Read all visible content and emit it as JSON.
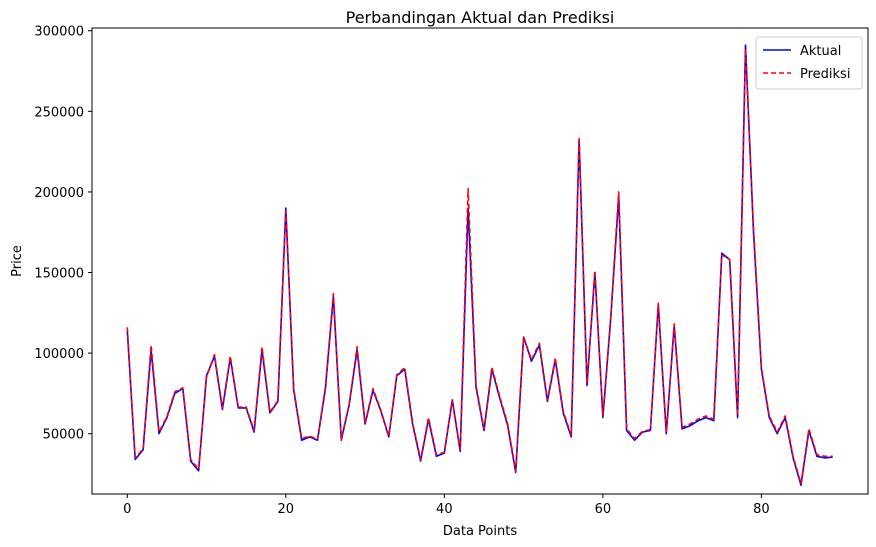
{
  "chart_data": {
    "type": "line",
    "title": "Perbandingan Aktual dan Prediksi",
    "xlabel": "Data Points",
    "ylabel": "Price",
    "xlim": [
      -4.45,
      93.45
    ],
    "ylim": [
      12600,
      301700
    ],
    "xticks": [
      0,
      20,
      40,
      60,
      80
    ],
    "yticks": [
      50000,
      100000,
      150000,
      200000,
      250000,
      300000
    ],
    "legend_position": "upper right",
    "grid": false,
    "series": [
      {
        "name": "Aktual",
        "color": "#0000ff",
        "style": "solid",
        "values": [
          114000,
          34000,
          40000,
          102000,
          50000,
          60000,
          75000,
          78000,
          33000,
          27000,
          86000,
          98000,
          65000,
          97000,
          66000,
          66000,
          51000,
          102000,
          63000,
          70000,
          190000,
          77000,
          46000,
          48000,
          46000,
          78000,
          135000,
          46000,
          68000,
          102000,
          56000,
          77000,
          64000,
          48000,
          86000,
          90000,
          56000,
          33000,
          59000,
          36000,
          38000,
          71000,
          39000,
          190000,
          79000,
          52000,
          90000,
          72000,
          55000,
          26000,
          110000,
          95000,
          105000,
          70000,
          96000,
          63000,
          48000,
          232000,
          80000,
          150000,
          60000,
          122000,
          197000,
          52000,
          46000,
          51000,
          52000,
          130000,
          50000,
          117000,
          53000,
          55000,
          58000,
          60000,
          58000,
          162000,
          158000,
          60000,
          291000,
          175000,
          90000,
          60000,
          50000,
          60000,
          35000,
          18000,
          52000,
          36000,
          35000,
          35500
        ]
      },
      {
        "name": "Prediksi",
        "color": "#ff0000",
        "style": "dashed",
        "values": [
          116000,
          35000,
          40500,
          105000,
          51000,
          60500,
          76000,
          78500,
          34000,
          28000,
          85000,
          99000,
          66000,
          98000,
          66500,
          66500,
          52000,
          104000,
          63500,
          70500,
          188000,
          78000,
          47000,
          48500,
          46500,
          79000,
          137000,
          46500,
          68500,
          104000,
          56500,
          78000,
          64500,
          48500,
          86500,
          91000,
          57000,
          34000,
          60000,
          37000,
          38500,
          71000,
          40000,
          202000,
          80000,
          53000,
          91000,
          73000,
          56000,
          27000,
          110000,
          96000,
          106000,
          71000,
          97000,
          64000,
          49000,
          234000,
          81000,
          151000,
          61000,
          123000,
          200000,
          53000,
          47000,
          51500,
          52500,
          131000,
          51000,
          118000,
          54000,
          56000,
          59000,
          61000,
          59000,
          161000,
          158000,
          61000,
          289000,
          178000,
          91000,
          61000,
          51000,
          61000,
          36000,
          19000,
          53000,
          37000,
          36000,
          36000
        ]
      }
    ]
  }
}
